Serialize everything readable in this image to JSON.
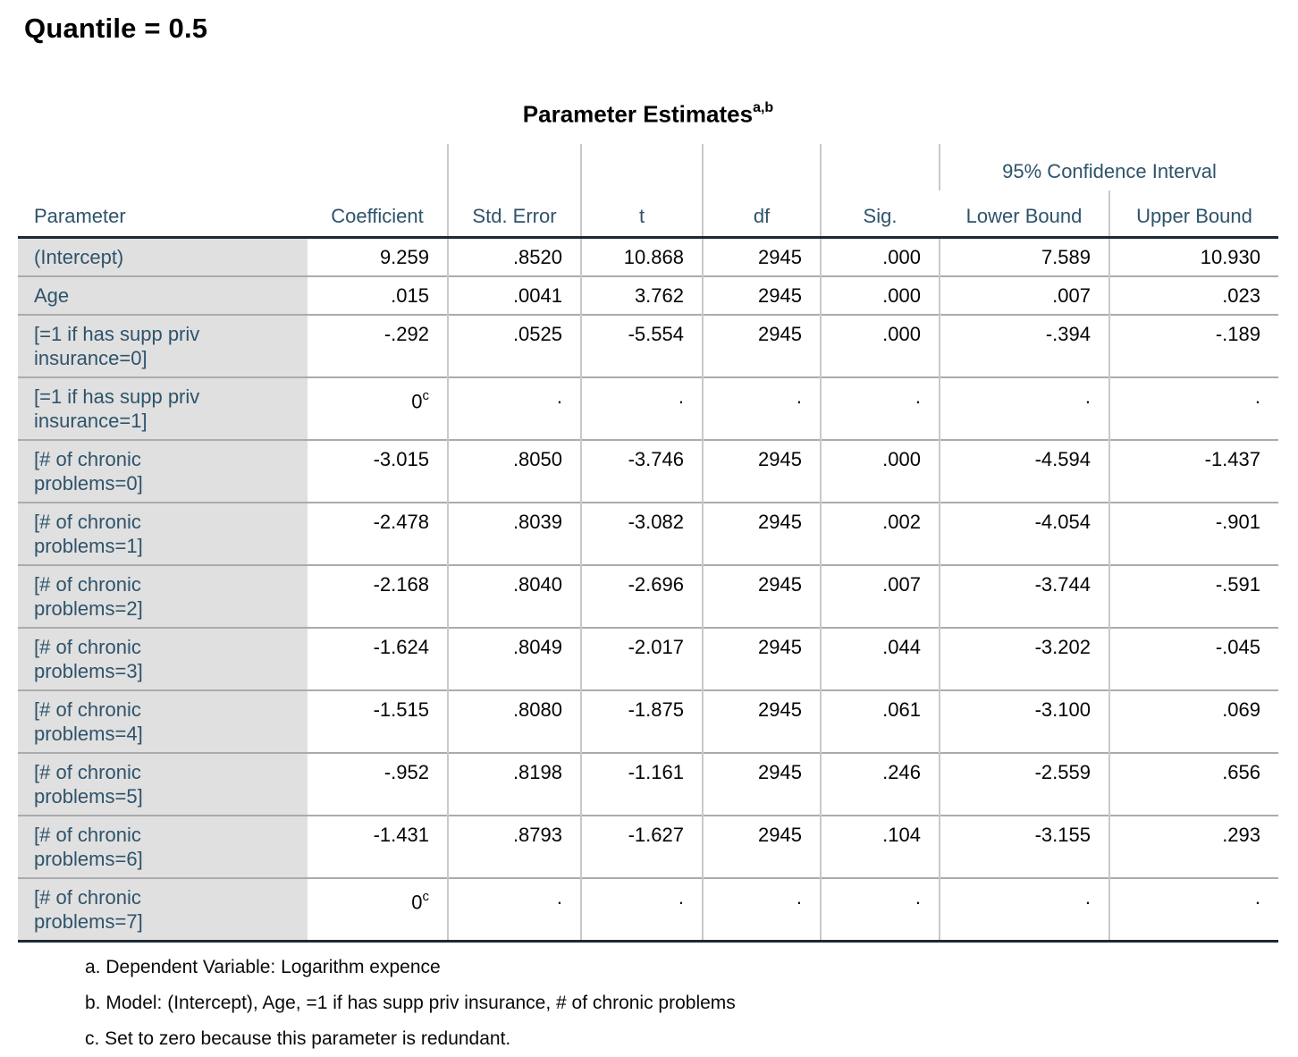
{
  "page_title": "Quantile = 0.5",
  "colors": {
    "label_blue": "#2e536b",
    "param_column_bg": "#e0e0e0",
    "thick_rule": "#1b2a35",
    "row_separator": "#ababab",
    "column_line": "#c9c9c9"
  },
  "table": {
    "title": "Parameter Estimates",
    "title_superscript": "a,b",
    "ci_header": "95% Confidence Interval",
    "columns": [
      "Parameter",
      "Coefficient",
      "Std. Error",
      "t",
      "df",
      "Sig.",
      "Lower Bound",
      "Upper Bound"
    ],
    "rows": [
      {
        "parameter": "(Intercept)",
        "coefficient": "9.259",
        "coefficient_sup": "",
        "std_error": ".8520",
        "t": "10.868",
        "df": "2945",
        "sig": ".000",
        "lower": "7.589",
        "upper": "10.930",
        "single_line": true
      },
      {
        "parameter": "Age",
        "coefficient": ".015",
        "coefficient_sup": "",
        "std_error": ".0041",
        "t": "3.762",
        "df": "2945",
        "sig": ".000",
        "lower": ".007",
        "upper": ".023",
        "single_line": true
      },
      {
        "parameter": "[=1 if has supp priv insurance=0]",
        "coefficient": "-.292",
        "coefficient_sup": "",
        "std_error": ".0525",
        "t": "-5.554",
        "df": "2945",
        "sig": ".000",
        "lower": "-.394",
        "upper": "-.189",
        "single_line": false
      },
      {
        "parameter": "[=1 if has supp priv insurance=1]",
        "coefficient": "0",
        "coefficient_sup": "c",
        "std_error": ".",
        "t": ".",
        "df": ".",
        "sig": ".",
        "lower": ".",
        "upper": ".",
        "single_line": false
      },
      {
        "parameter": "[# of chronic problems=0]",
        "coefficient": "-3.015",
        "coefficient_sup": "",
        "std_error": ".8050",
        "t": "-3.746",
        "df": "2945",
        "sig": ".000",
        "lower": "-4.594",
        "upper": "-1.437",
        "single_line": false
      },
      {
        "parameter": "[# of chronic problems=1]",
        "coefficient": "-2.478",
        "coefficient_sup": "",
        "std_error": ".8039",
        "t": "-3.082",
        "df": "2945",
        "sig": ".002",
        "lower": "-4.054",
        "upper": "-.901",
        "single_line": false
      },
      {
        "parameter": "[# of chronic problems=2]",
        "coefficient": "-2.168",
        "coefficient_sup": "",
        "std_error": ".8040",
        "t": "-2.696",
        "df": "2945",
        "sig": ".007",
        "lower": "-3.744",
        "upper": "-.591",
        "single_line": false
      },
      {
        "parameter": "[# of chronic problems=3]",
        "coefficient": "-1.624",
        "coefficient_sup": "",
        "std_error": ".8049",
        "t": "-2.017",
        "df": "2945",
        "sig": ".044",
        "lower": "-3.202",
        "upper": "-.045",
        "single_line": false
      },
      {
        "parameter": "[# of chronic problems=4]",
        "coefficient": "-1.515",
        "coefficient_sup": "",
        "std_error": ".8080",
        "t": "-1.875",
        "df": "2945",
        "sig": ".061",
        "lower": "-3.100",
        "upper": ".069",
        "single_line": false
      },
      {
        "parameter": "[# of chronic problems=5]",
        "coefficient": "-.952",
        "coefficient_sup": "",
        "std_error": ".8198",
        "t": "-1.161",
        "df": "2945",
        "sig": ".246",
        "lower": "-2.559",
        "upper": ".656",
        "single_line": false
      },
      {
        "parameter": "[# of chronic problems=6]",
        "coefficient": "-1.431",
        "coefficient_sup": "",
        "std_error": ".8793",
        "t": "-1.627",
        "df": "2945",
        "sig": ".104",
        "lower": "-3.155",
        "upper": ".293",
        "single_line": false
      },
      {
        "parameter": "[# of chronic problems=7]",
        "coefficient": "0",
        "coefficient_sup": "c",
        "std_error": ".",
        "t": ".",
        "df": ".",
        "sig": ".",
        "lower": ".",
        "upper": ".",
        "single_line": false
      }
    ],
    "footnotes": [
      "a. Dependent Variable: Logarithm expence",
      "b. Model: (Intercept), Age, =1 if has supp priv insurance, # of chronic problems",
      "c. Set to zero because this parameter is redundant."
    ]
  }
}
